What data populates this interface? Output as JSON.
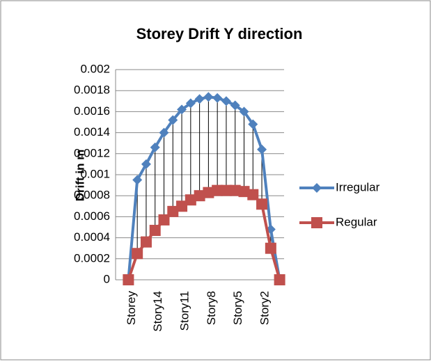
{
  "chart_data": {
    "type": "line",
    "title": "Storey Drift Y direction",
    "y_label": "Drift in m",
    "categories": [
      "Storey",
      null,
      null,
      "Story14",
      null,
      null,
      "Story11",
      null,
      null,
      "Story8",
      null,
      null,
      "Story5",
      null,
      null,
      "Story2",
      null,
      null
    ],
    "series": [
      {
        "name": "Irregular",
        "color": "#4f81bd",
        "marker": "diamond",
        "values": [
          0,
          0.00095,
          0.0011,
          0.00126,
          0.0014,
          0.00152,
          0.00162,
          0.00168,
          0.00172,
          0.00174,
          0.00173,
          0.0017,
          0.00166,
          0.0016,
          0.00148,
          0.00124,
          0.00048,
          0
        ]
      },
      {
        "name": "Regular",
        "color": "#c0504d",
        "marker": "square",
        "values": [
          0,
          0.00025,
          0.00036,
          0.00047,
          0.00057,
          0.00065,
          0.0007,
          0.00076,
          0.0008,
          0.00083,
          0.00085,
          0.00085,
          0.00085,
          0.00084,
          0.00081,
          0.00072,
          0.0003,
          0
        ]
      }
    ],
    "ylim": [
      0,
      0.002
    ],
    "yticks": [
      0,
      0.0002,
      0.0004,
      0.0006,
      0.0008,
      0.001,
      0.0012,
      0.0014,
      0.0016,
      0.0018,
      0.002
    ],
    "grid": true,
    "high_low_lines": true,
    "legend": "right"
  }
}
